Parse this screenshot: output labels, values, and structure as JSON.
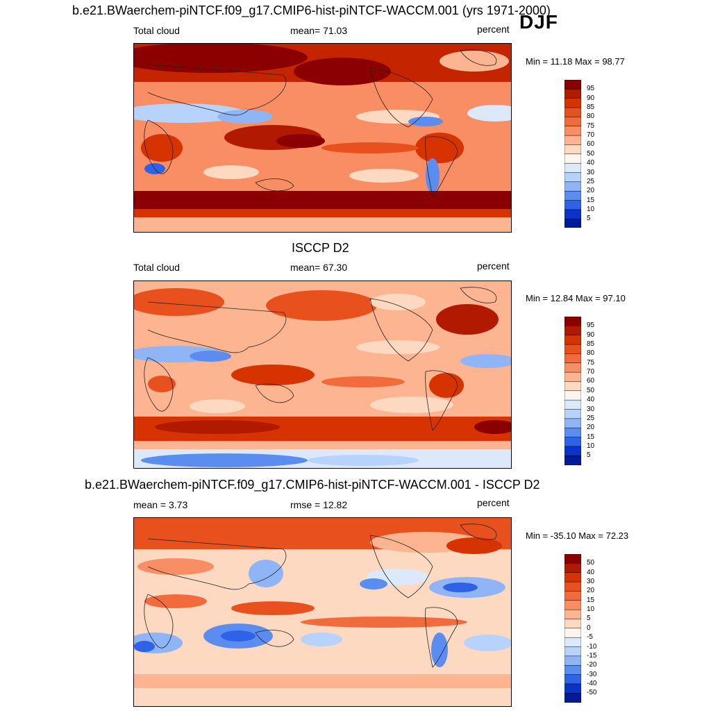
{
  "header": {
    "top_title": "b.e21.BWaerchem-piNTCF.f09_g17.CMIP6-hist-piNTCF-WACCM.001 (yrs 1971-2000)",
    "season": "DJF"
  },
  "panels": [
    {
      "id": "model",
      "title": "",
      "left_label": "Total cloud",
      "center_label": "mean=  71.03",
      "right_label": "percent",
      "minmax": "Min =  11.18 Max =  98.77",
      "colorbar": {
        "labels": [
          "95",
          "90",
          "85",
          "80",
          "75",
          "70",
          "60",
          "50",
          "40",
          "30",
          "25",
          "20",
          "15",
          "10",
          "5"
        ],
        "colors": [
          "#8b0000",
          "#b11a00",
          "#d63300",
          "#e8501d",
          "#f26b3c",
          "#f98d64",
          "#fdb491",
          "#fdd9c2",
          "#fdf5ee",
          "#dbe9fb",
          "#b7d2fb",
          "#8fb5f7",
          "#5b8df1",
          "#2f62e6",
          "#0a33c9",
          "#001a99"
        ]
      }
    },
    {
      "id": "obs",
      "title": "ISCCP D2",
      "left_label": "Total cloud",
      "center_label": "mean=  67.30",
      "right_label": "percent",
      "minmax": "Min =  12.84 Max =  97.10",
      "colorbar": {
        "labels": [
          "95",
          "90",
          "85",
          "80",
          "75",
          "70",
          "60",
          "50",
          "40",
          "30",
          "25",
          "20",
          "15",
          "10",
          "5"
        ],
        "colors": [
          "#8b0000",
          "#b11a00",
          "#d63300",
          "#e8501d",
          "#f26b3c",
          "#f98d64",
          "#fdb491",
          "#fdd9c2",
          "#fdf5ee",
          "#dbe9fb",
          "#b7d2fb",
          "#8fb5f7",
          "#5b8df1",
          "#2f62e6",
          "#0a33c9",
          "#001a99"
        ]
      }
    },
    {
      "id": "diff",
      "title": "b.e21.BWaerchem-piNTCF.f09_g17.CMIP6-hist-piNTCF-WACCM.001 - ISCCP D2",
      "left_label": "mean =   3.73",
      "center_label": "rmse =  12.82",
      "right_label": "percent",
      "minmax": "Min = -35.10 Max =  72.23",
      "colorbar": {
        "labels": [
          "50",
          "40",
          "30",
          "20",
          "15",
          "10",
          "5",
          "0",
          "-5",
          "-10",
          "-15",
          "-20",
          "-30",
          "-40",
          "-50"
        ],
        "colors": [
          "#8b0000",
          "#b11a00",
          "#d63300",
          "#e8501d",
          "#f26b3c",
          "#f98d64",
          "#fdb491",
          "#fdd9c2",
          "#fdf5ee",
          "#dbe9fb",
          "#b7d2fb",
          "#8fb5f7",
          "#5b8df1",
          "#2f62e6",
          "#0a33c9",
          "#001a99"
        ]
      }
    }
  ]
}
